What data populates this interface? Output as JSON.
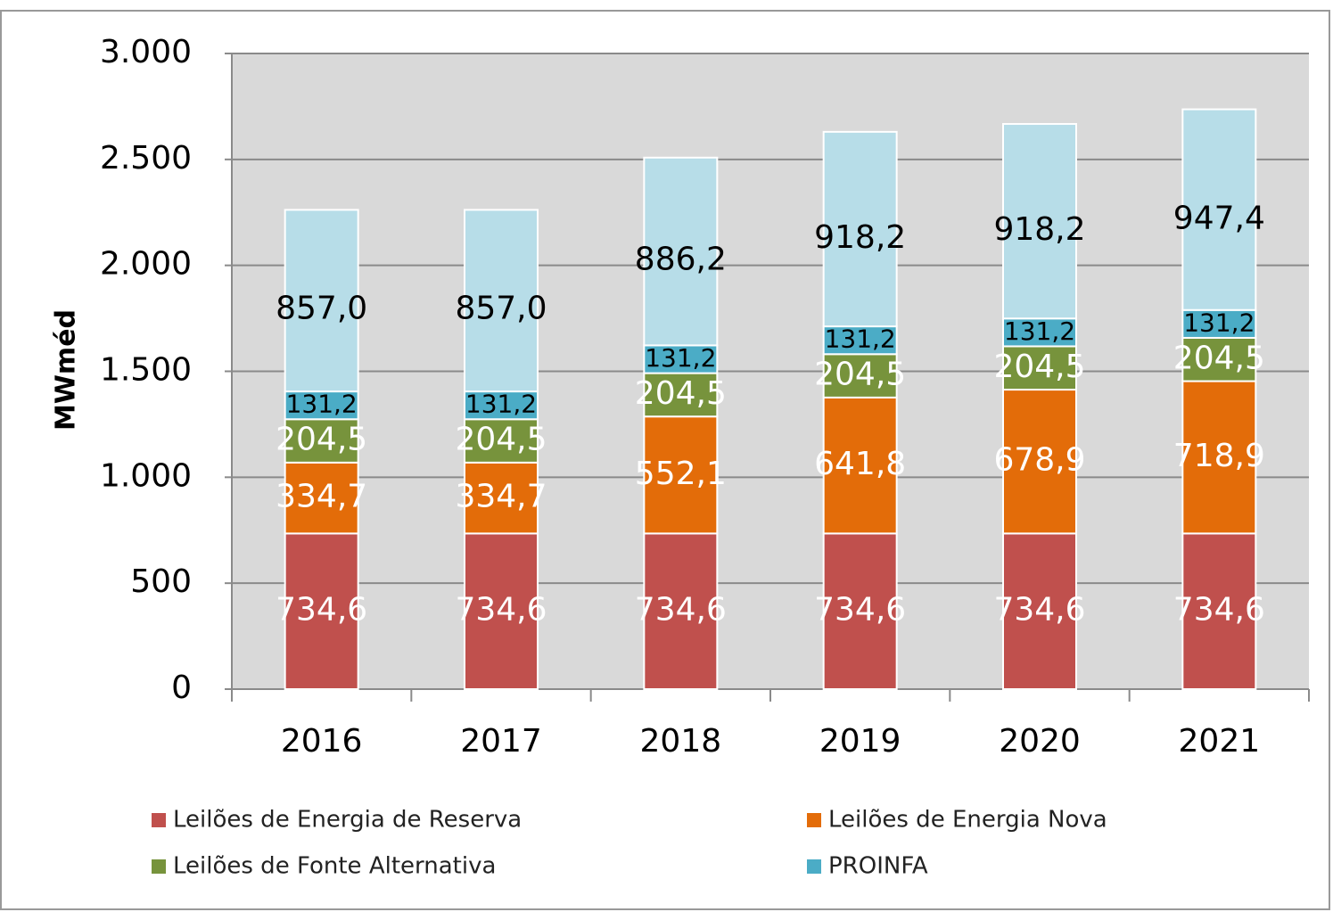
{
  "chart_data": {
    "type": "stacked_bar",
    "ylabel": "MWméd",
    "categories": [
      "2016",
      "2017",
      "2018",
      "2019",
      "2020",
      "2021"
    ],
    "series": [
      {
        "name": "Leilões de Energia de Reserva",
        "color": "#c0504d",
        "label_color": "#ffffff",
        "values": [
          734.6,
          734.6,
          734.6,
          734.6,
          734.6,
          734.6
        ],
        "value_labels": [
          "734,6",
          "734,6",
          "734,6",
          "734,6",
          "734,6",
          "734,6"
        ]
      },
      {
        "name": "Leilões de Energia Nova",
        "color": "#e36c09",
        "label_color": "#ffffff",
        "values": [
          334.7,
          334.7,
          552.1,
          641.8,
          678.9,
          718.9
        ],
        "value_labels": [
          "334,7",
          "334,7",
          "552,1",
          "641,8",
          "678,9",
          "718,9"
        ]
      },
      {
        "name": "Leilões de Fonte Alternativa",
        "color": "#77933c",
        "label_color": "#ffffff",
        "values": [
          204.5,
          204.5,
          204.5,
          204.5,
          204.5,
          204.5
        ],
        "value_labels": [
          "204,5",
          "204,5",
          "204,5",
          "204,5",
          "204,5",
          "204,5"
        ]
      },
      {
        "name": "PROINFA",
        "color": "#4bacc6",
        "label_color": "#000000",
        "values": [
          131.2,
          131.2,
          131.2,
          131.2,
          131.2,
          131.2
        ],
        "value_labels": [
          "131,2",
          "131,2",
          "131,2",
          "131,2",
          "131,2",
          "131,2"
        ]
      },
      {
        "color": "#b7dde8",
        "label_color": "#000000",
        "values": [
          857.0,
          857.0,
          886.2,
          918.2,
          918.2,
          947.4
        ],
        "value_labels": [
          "857,0",
          "857,0",
          "886,2",
          "918,2",
          "918,2",
          "947,4"
        ]
      }
    ],
    "ylim": [
      0,
      3000
    ],
    "yticks": [
      0,
      500,
      {
        "value": 1000,
        "label": "1.000"
      },
      {
        "value": 1500,
        "label": "1.500"
      },
      {
        "value": 2000,
        "label": "2.000"
      },
      {
        "value": 2500,
        "label": "2.500"
      },
      {
        "value": 3000,
        "label": "3.000"
      }
    ],
    "grid": true,
    "legend": "bottom"
  }
}
